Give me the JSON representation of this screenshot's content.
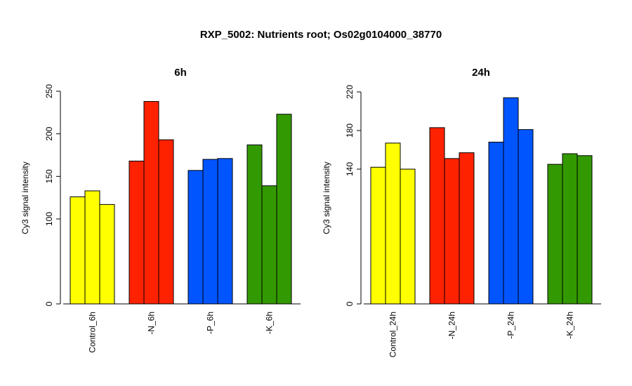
{
  "title": "RXP_5002: Nutrients root; Os02g0104000_38770",
  "chart_data": [
    {
      "type": "bar",
      "title": "6h",
      "ylabel": "Cy3 signal intensity",
      "yscale": "nonlinear",
      "yticks": [
        "0",
        "100",
        "150",
        "200",
        "250"
      ],
      "categories": [
        "Control_6h",
        "-N_6h",
        "-P_6h",
        "-K_6h"
      ],
      "group_colors": [
        "#ffff00",
        "#ff2200",
        "#0055ff",
        "#339900"
      ],
      "values": [
        [
          126,
          133,
          117
        ],
        [
          168,
          238,
          193
        ],
        [
          157,
          170,
          171
        ],
        [
          187,
          139,
          223
        ]
      ],
      "grid": false,
      "legend": "none"
    },
    {
      "type": "bar",
      "title": "24h",
      "ylabel": "Cy3 signal intensity",
      "yscale": "nonlinear",
      "yticks": [
        "0",
        "140",
        "180",
        "220"
      ],
      "categories": [
        "Control_24h",
        "-N_24h",
        "-P_24h",
        "-K_24h"
      ],
      "group_colors": [
        "#ffff00",
        "#ff2200",
        "#0055ff",
        "#339900"
      ],
      "values": [
        [
          142,
          167,
          140
        ],
        [
          183,
          151,
          157
        ],
        [
          168,
          214,
          181
        ],
        [
          145,
          156,
          154
        ]
      ],
      "grid": false,
      "legend": "none"
    }
  ]
}
